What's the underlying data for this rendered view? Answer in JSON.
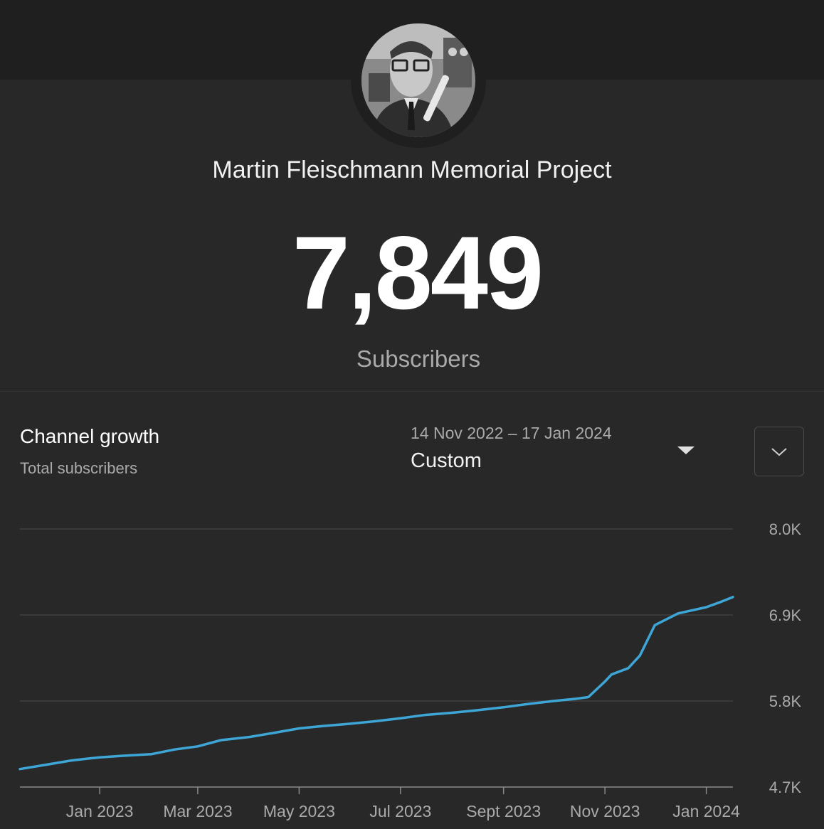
{
  "channel": {
    "name": "Martin Fleischmann Memorial Project",
    "subscriber_count": "7,849",
    "subscriber_label": "Subscribers",
    "avatar_icon": "channel-avatar-photo"
  },
  "growth": {
    "title": "Channel growth",
    "subtitle": "Total subscribers",
    "date_range": "14 Nov 2022 – 17 Jan 2024",
    "period": "Custom",
    "period_dropdown_icon": "triangle-down-icon",
    "expand_icon": "chevron-down-icon"
  },
  "chart_data": {
    "type": "line",
    "series": [
      {
        "color": "#3ea6d6",
        "x": [
          "2022-11-14",
          "2022-12-01",
          "2022-12-15",
          "2023-01-01",
          "2023-01-15",
          "2023-02-01",
          "2023-02-15",
          "2023-03-01",
          "2023-03-15",
          "2023-04-01",
          "2023-04-15",
          "2023-05-01",
          "2023-05-15",
          "2023-06-01",
          "2023-06-15",
          "2023-07-01",
          "2023-07-15",
          "2023-08-01",
          "2023-08-15",
          "2023-09-01",
          "2023-09-15",
          "2023-10-01",
          "2023-10-15",
          "2023-10-22",
          "2023-11-01",
          "2023-11-05",
          "2023-11-15",
          "2023-11-22",
          "2023-12-01",
          "2023-12-15",
          "2024-01-01",
          "2024-01-10",
          "2024-01-17"
        ],
        "y": [
          4930,
          4990,
          5040,
          5080,
          5100,
          5120,
          5180,
          5220,
          5300,
          5340,
          5390,
          5450,
          5480,
          5510,
          5540,
          5580,
          5620,
          5650,
          5680,
          5720,
          5760,
          5800,
          5830,
          5850,
          6050,
          6140,
          6220,
          6380,
          6770,
          6920,
          7000,
          7070,
          7130
        ]
      }
    ],
    "x_ticks": [
      "Jan 2023",
      "Mar 2023",
      "May 2023",
      "Jul 2023",
      "Sept 2023",
      "Nov 2023",
      "Jan 2024"
    ],
    "x_tick_dates": [
      "2023-01-01",
      "2023-03-01",
      "2023-05-01",
      "2023-07-01",
      "2023-09-01",
      "2023-11-01",
      "2024-01-01"
    ],
    "x_range": [
      "2022-11-14",
      "2024-01-17"
    ],
    "y_ticks": [
      "8.0K",
      "6.9K",
      "5.8K",
      "4.7K"
    ],
    "y_tick_values": [
      8000,
      6900,
      5800,
      4700
    ],
    "ylim": [
      4700,
      8000
    ],
    "grid": true,
    "y_axis_side": "right"
  }
}
